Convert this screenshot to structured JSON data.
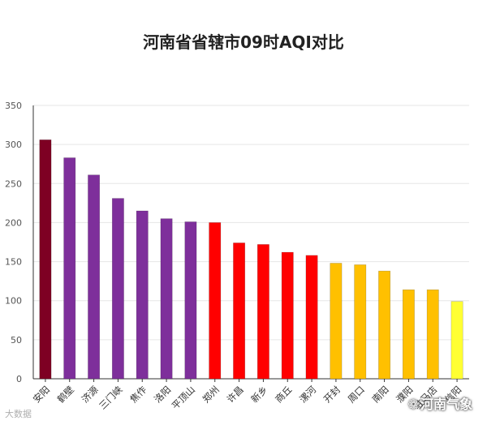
{
  "chart_data": {
    "type": "bar",
    "title": "河南省省辖市09时AQI对比",
    "xlabel": "",
    "ylabel": "",
    "ylim": [
      0,
      350
    ],
    "yticks": [
      0,
      50,
      100,
      150,
      200,
      250,
      300,
      350
    ],
    "grid": true,
    "categories": [
      "安阳",
      "鹤壁",
      "济源",
      "三门峡",
      "焦作",
      "洛阳",
      "平顶山",
      "郑州",
      "许昌",
      "新乡",
      "商丘",
      "漯河",
      "开封",
      "周口",
      "南阳",
      "濮阳",
      "驻马店",
      "信阳"
    ],
    "values": [
      306,
      283,
      261,
      231,
      215,
      205,
      201,
      200,
      174,
      172,
      162,
      158,
      148,
      146,
      138,
      114,
      114,
      99
    ],
    "bar_colors": [
      "#7e0023",
      "#7e2f9b",
      "#7e2f9b",
      "#7e2f9b",
      "#7e2f9b",
      "#7e2f9b",
      "#7e2f9b",
      "#ff0000",
      "#ff0000",
      "#ff0000",
      "#ff0000",
      "#ff0000",
      "#ffc000",
      "#ffc000",
      "#ffc000",
      "#ffc000",
      "#ffc000",
      "#ffff33"
    ]
  },
  "watermark": {
    "left": "大数据",
    "right_icon": "wechat-icon",
    "right": "河南气象"
  }
}
